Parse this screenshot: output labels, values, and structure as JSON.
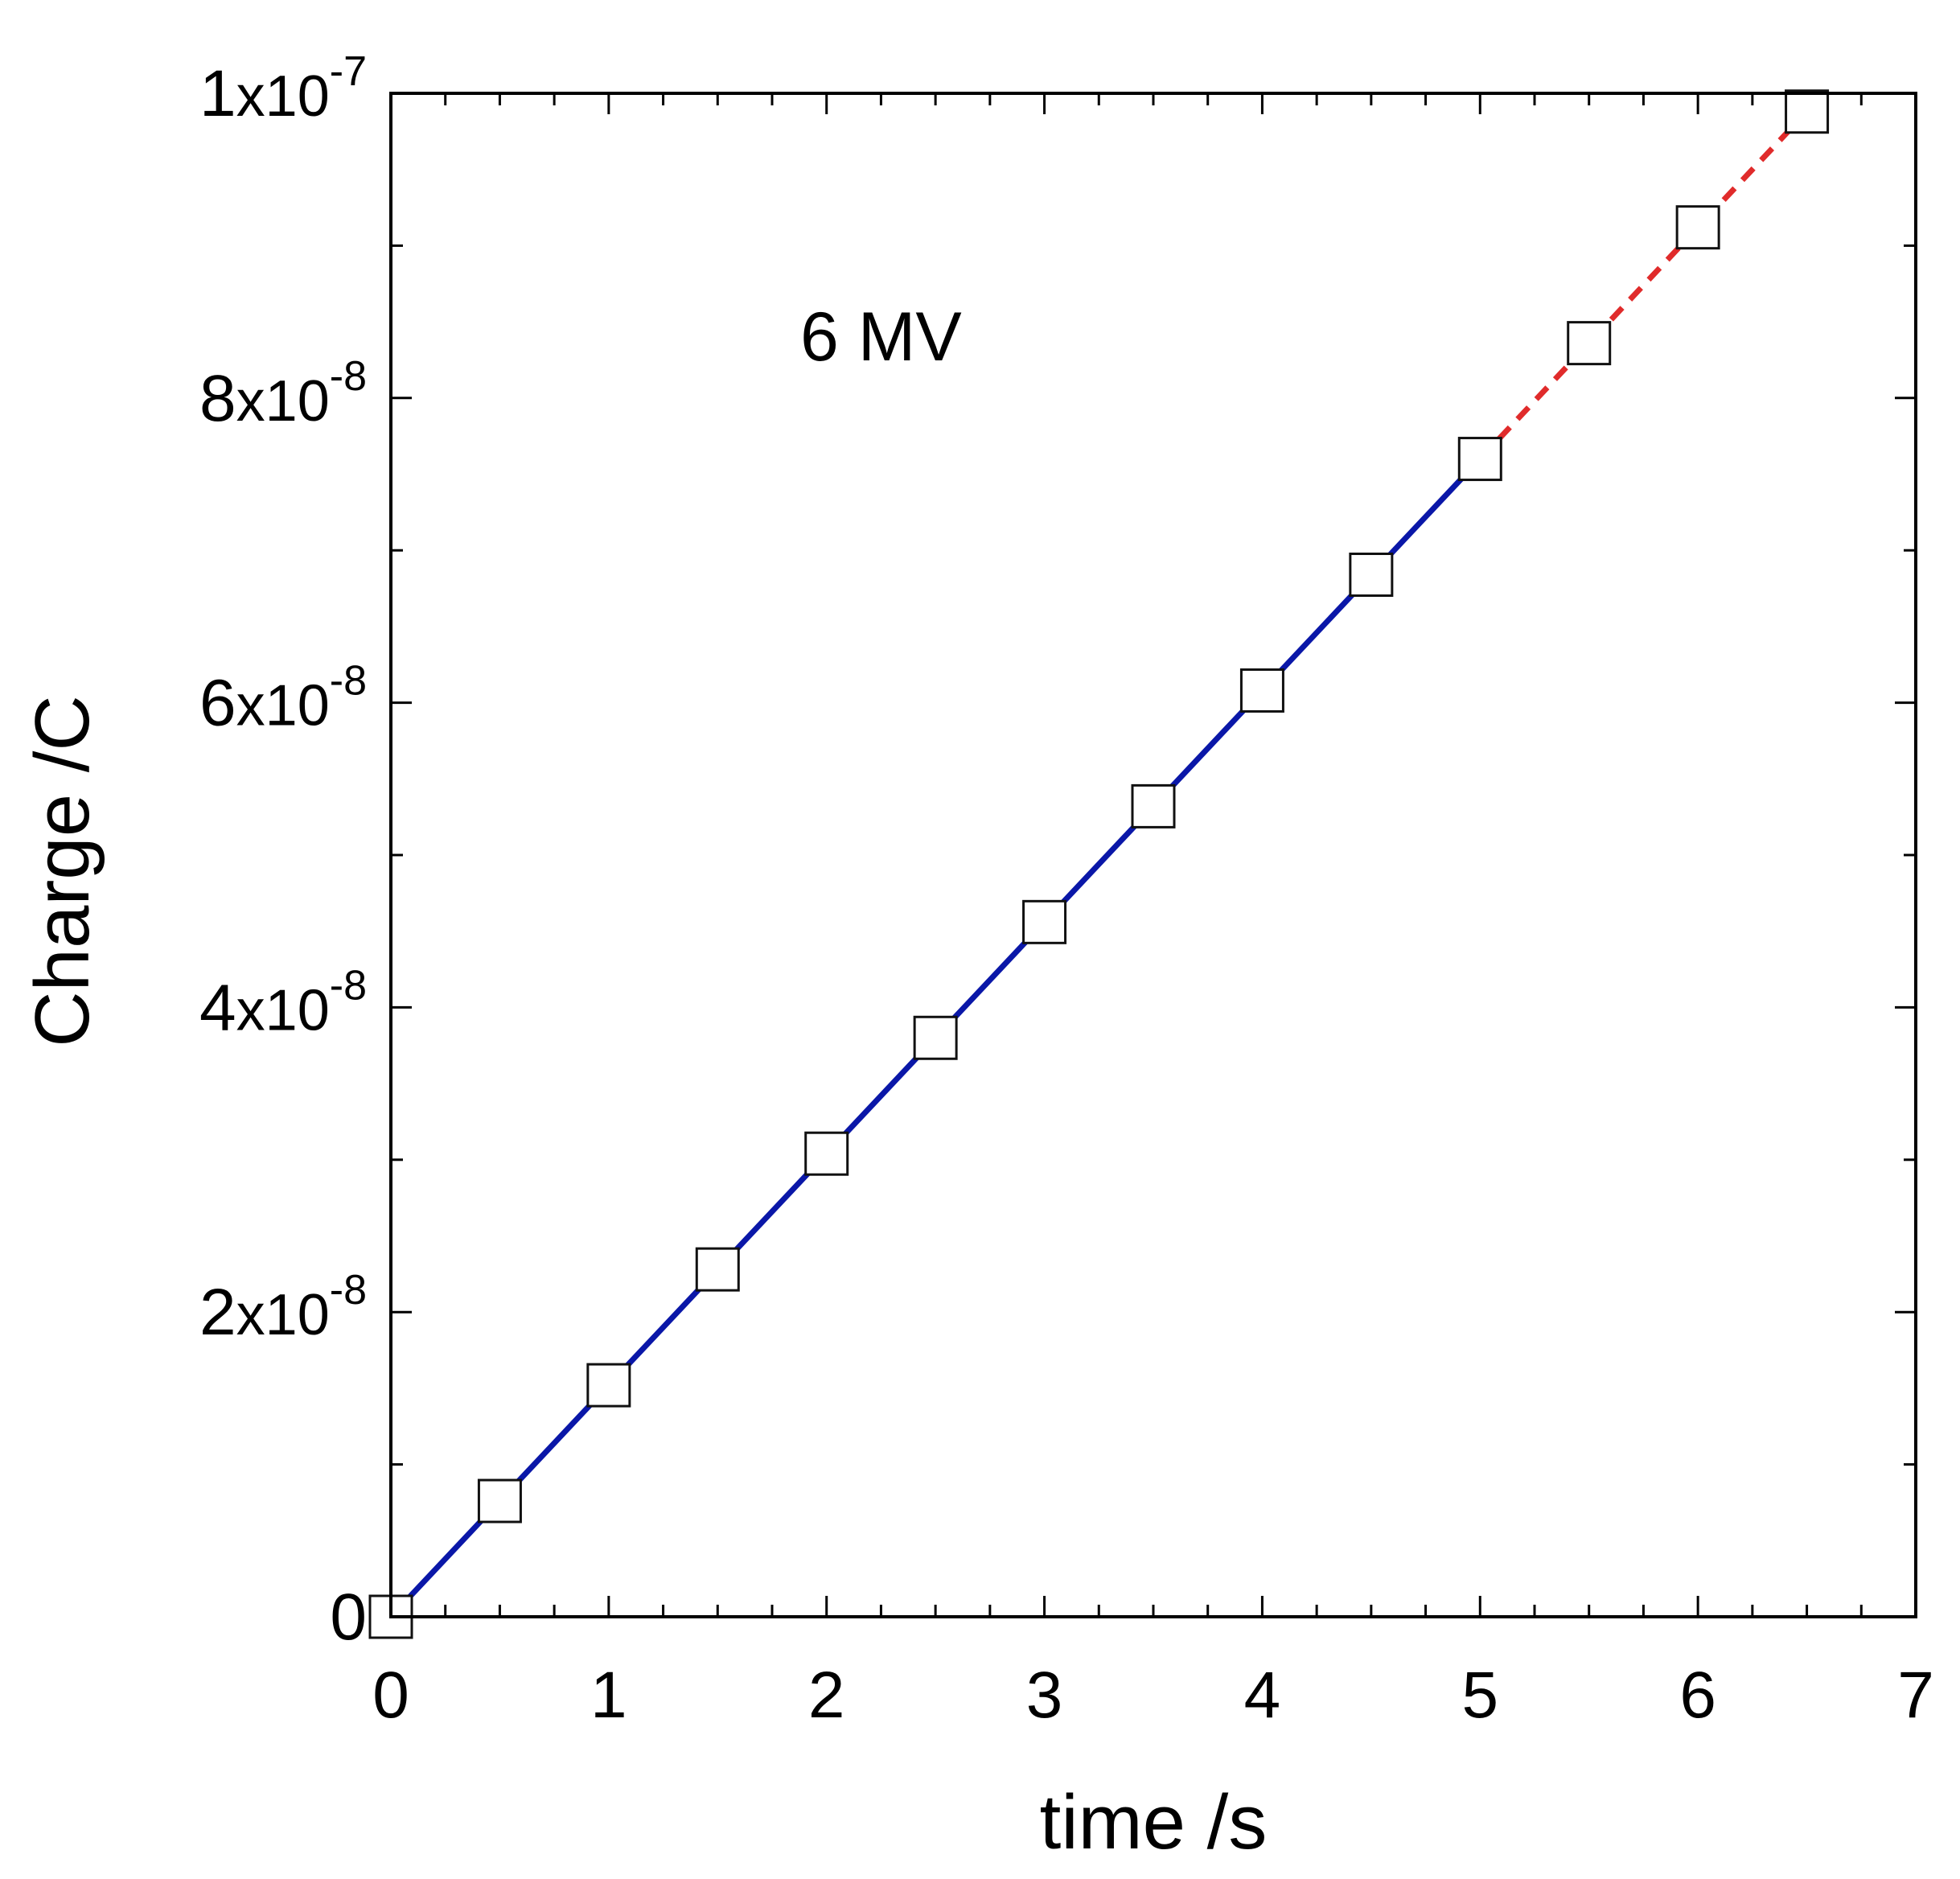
{
  "chart_data": {
    "type": "line",
    "title": "",
    "annotation": "6 MV",
    "xlabel": "time /s",
    "ylabel": "Charge /C",
    "xlim": [
      0,
      7
    ],
    "ylim": [
      0,
      1e-07
    ],
    "grid": false,
    "x_ticks": [
      0,
      1,
      2,
      3,
      4,
      5,
      6,
      7
    ],
    "x_tick_labels": [
      "0",
      "1",
      "2",
      "3",
      "4",
      "5",
      "6",
      "7"
    ],
    "y_ticks": [
      {
        "value": 0,
        "mantissa": "0",
        "base": "",
        "exponent": ""
      },
      {
        "value": 2e-08,
        "mantissa": "2",
        "base": "x10",
        "exponent": "-8"
      },
      {
        "value": 4e-08,
        "mantissa": "4",
        "base": "x10",
        "exponent": "-8"
      },
      {
        "value": 6e-08,
        "mantissa": "6",
        "base": "x10",
        "exponent": "-8"
      },
      {
        "value": 8e-08,
        "mantissa": "8",
        "base": "x10",
        "exponent": "-8"
      },
      {
        "value": 1e-07,
        "mantissa": "1",
        "base": "x10",
        "exponent": "-7"
      }
    ],
    "points": {
      "marker": "open-square",
      "x": [
        0,
        0.5,
        1,
        1.5,
        2,
        2.5,
        3,
        3.5,
        4,
        4.5,
        5,
        5.5,
        6,
        6.5
      ],
      "y": [
        0,
        7.6e-09,
        1.52e-08,
        2.28e-08,
        3.04e-08,
        3.8e-08,
        4.56e-08,
        5.32e-08,
        6.08e-08,
        6.84e-08,
        7.6e-08,
        8.36e-08,
        9.12e-08,
        9.88e-08
      ]
    },
    "fit_solid": {
      "x": [
        0,
        5
      ],
      "y": [
        0,
        7.6e-08
      ],
      "color": "#0a17a8",
      "style": "solid"
    },
    "fit_dashed": {
      "x": [
        5,
        6.5
      ],
      "y": [
        7.6e-08,
        9.88e-08
      ],
      "color": "#e02b2b",
      "style": "dashed"
    }
  }
}
